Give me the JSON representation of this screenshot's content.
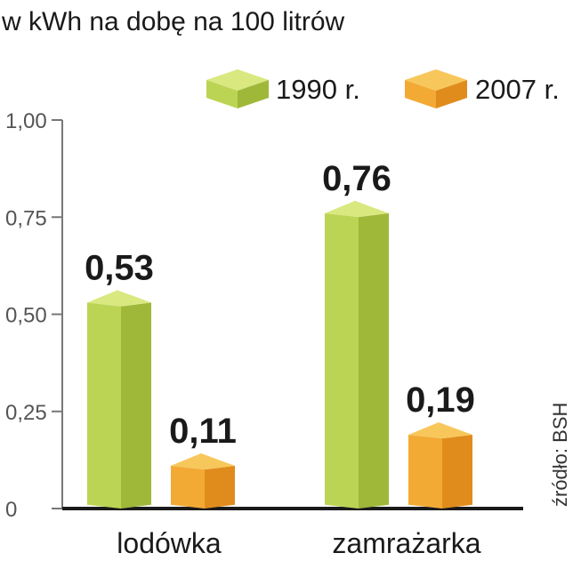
{
  "chart_data": {
    "type": "bar",
    "title": "w kWh na dobę na 100 litrów",
    "categories": [
      "lodówka",
      "zamrażarka"
    ],
    "series": [
      {
        "name": "1990 r.",
        "values": [
          0.53,
          0.76
        ],
        "labels": [
          "0,53",
          "0,76"
        ]
      },
      {
        "name": "2007 r.",
        "values": [
          0.11,
          0.19
        ],
        "labels": [
          "0,11",
          "0,19"
        ]
      }
    ],
    "ylim": [
      0,
      1
    ],
    "yticks": [
      {
        "value": 0,
        "label": "0"
      },
      {
        "value": 0.25,
        "label": "0,25"
      },
      {
        "value": 0.5,
        "label": "0,50"
      },
      {
        "value": 0.75,
        "label": "0,75"
      },
      {
        "value": 1,
        "label": "1,00"
      }
    ],
    "legend_position": "top-right",
    "grid": false,
    "source": "źródło: BSH",
    "colors": {
      "1990 r.": {
        "top": "#d9e87f",
        "front": "#bcd454",
        "side": "#9fb83a"
      },
      "2007 r.": {
        "top": "#f8c75c",
        "front": "#f2aa35",
        "side": "#e08c1d"
      }
    }
  }
}
